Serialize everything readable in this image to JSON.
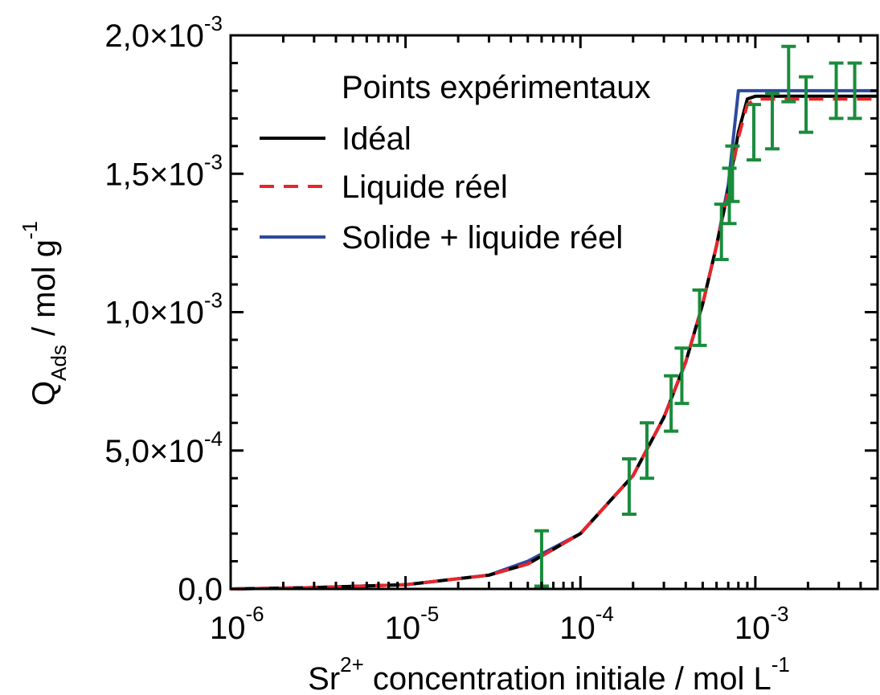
{
  "chart_data": {
    "type": "scatter",
    "x_scale": "log",
    "xlim": [
      1e-06,
      0.005
    ],
    "ylim": [
      0,
      0.002
    ],
    "y_ticks": [
      {
        "value": 0,
        "label": "0,0"
      },
      {
        "value": 0.0005,
        "label": "5,0×10",
        "exp": "-4"
      },
      {
        "value": 0.001,
        "label": "1,0×10",
        "exp": "-3"
      },
      {
        "value": 0.0015,
        "label": "1,5×10",
        "exp": "-3"
      },
      {
        "value": 0.002,
        "label": "2,0×10",
        "exp": "-3"
      }
    ],
    "x_ticks": [
      {
        "value": 1e-06,
        "base": "10",
        "exp": "-6"
      },
      {
        "value": 1e-05,
        "base": "10",
        "exp": "-5"
      },
      {
        "value": 0.0001,
        "base": "10",
        "exp": "-4"
      },
      {
        "value": 0.001,
        "base": "10",
        "exp": "-3"
      }
    ],
    "xlabel": {
      "species": "Sr",
      "charge": "2+",
      "text": " concentration initiale   /   mol L",
      "exp": "-1"
    },
    "ylabel": {
      "q": "Q",
      "sub": "Ads",
      "text": "   /   mol g",
      "exp": "-1"
    },
    "legend_position": "top-right",
    "grid": false,
    "series": [
      {
        "name": "Points expérimentaux",
        "kind": "points",
        "color": "#1a8c3c",
        "points": [
          {
            "x": 6e-05,
            "y": 0.00011,
            "err": 0.0001
          },
          {
            "x": 0.00019,
            "y": 0.00037,
            "err": 0.0001
          },
          {
            "x": 0.00024,
            "y": 0.0005,
            "err": 0.0001
          },
          {
            "x": 0.00033,
            "y": 0.00067,
            "err": 0.0001
          },
          {
            "x": 0.00038,
            "y": 0.00077,
            "err": 0.0001
          },
          {
            "x": 0.00048,
            "y": 0.00098,
            "err": 0.0001
          },
          {
            "x": 0.00064,
            "y": 0.00129,
            "err": 0.0001
          },
          {
            "x": 0.00071,
            "y": 0.00142,
            "err": 0.0001
          },
          {
            "x": 0.00074,
            "y": 0.0015,
            "err": 0.0001
          },
          {
            "x": 0.00098,
            "y": 0.00165,
            "err": 0.0001
          },
          {
            "x": 0.00125,
            "y": 0.00169,
            "err": 0.0001
          },
          {
            "x": 0.00155,
            "y": 0.00186,
            "err": 0.0001
          },
          {
            "x": 0.00195,
            "y": 0.00175,
            "err": 0.0001
          },
          {
            "x": 0.0029,
            "y": 0.0018,
            "err": 0.0001
          },
          {
            "x": 0.0037,
            "y": 0.0018,
            "err": 0.0001
          }
        ]
      },
      {
        "name": "Idéal",
        "kind": "line",
        "color": "#000000",
        "dash": false,
        "points": [
          [
            1e-06,
            0
          ],
          [
            3e-06,
            5e-06
          ],
          [
            1e-05,
            1.5e-05
          ],
          [
            3e-05,
            5e-05
          ],
          [
            5e-05,
            9e-05
          ],
          [
            0.0001,
            0.0002
          ],
          [
            0.0002,
            0.00041
          ],
          [
            0.0003,
            0.00062
          ],
          [
            0.0004,
            0.00082
          ],
          [
            0.0005,
            0.00103
          ],
          [
            0.0006,
            0.00124
          ],
          [
            0.0007,
            0.00144
          ],
          [
            0.0008,
            0.00165
          ],
          [
            0.0009,
            0.00177
          ],
          [
            0.001,
            0.00178
          ],
          [
            0.005,
            0.00178
          ]
        ]
      },
      {
        "name": "Liquide réel",
        "kind": "line",
        "color": "#e8262b",
        "dash": true,
        "points": [
          [
            1e-06,
            0
          ],
          [
            3e-06,
            5e-06
          ],
          [
            1e-05,
            1.5e-05
          ],
          [
            3e-05,
            5e-05
          ],
          [
            5e-05,
            9e-05
          ],
          [
            0.0001,
            0.0002
          ],
          [
            0.0002,
            0.00041
          ],
          [
            0.0003,
            0.00062
          ],
          [
            0.0004,
            0.00082
          ],
          [
            0.0005,
            0.00103
          ],
          [
            0.0006,
            0.00124
          ],
          [
            0.0007,
            0.00144
          ],
          [
            0.0008,
            0.00163
          ],
          [
            0.0009,
            0.00175
          ],
          [
            0.001,
            0.00177
          ],
          [
            0.005,
            0.00177
          ]
        ]
      },
      {
        "name": "Solide + liquide réel",
        "kind": "line",
        "color": "#2e4a9e",
        "dash": false,
        "points": [
          [
            1e-06,
            0
          ],
          [
            3e-06,
            5e-06
          ],
          [
            1e-05,
            1.5e-05
          ],
          [
            3e-05,
            5e-05
          ],
          [
            5e-05,
            0.0001
          ],
          [
            0.0001,
            0.0002
          ],
          [
            0.0002,
            0.00041
          ],
          [
            0.0003,
            0.00062
          ],
          [
            0.0004,
            0.00082
          ],
          [
            0.0005,
            0.00103
          ],
          [
            0.0006,
            0.00124
          ],
          [
            0.0007,
            0.00146
          ],
          [
            0.0008,
            0.0018
          ],
          [
            0.005,
            0.0018
          ]
        ]
      }
    ]
  }
}
